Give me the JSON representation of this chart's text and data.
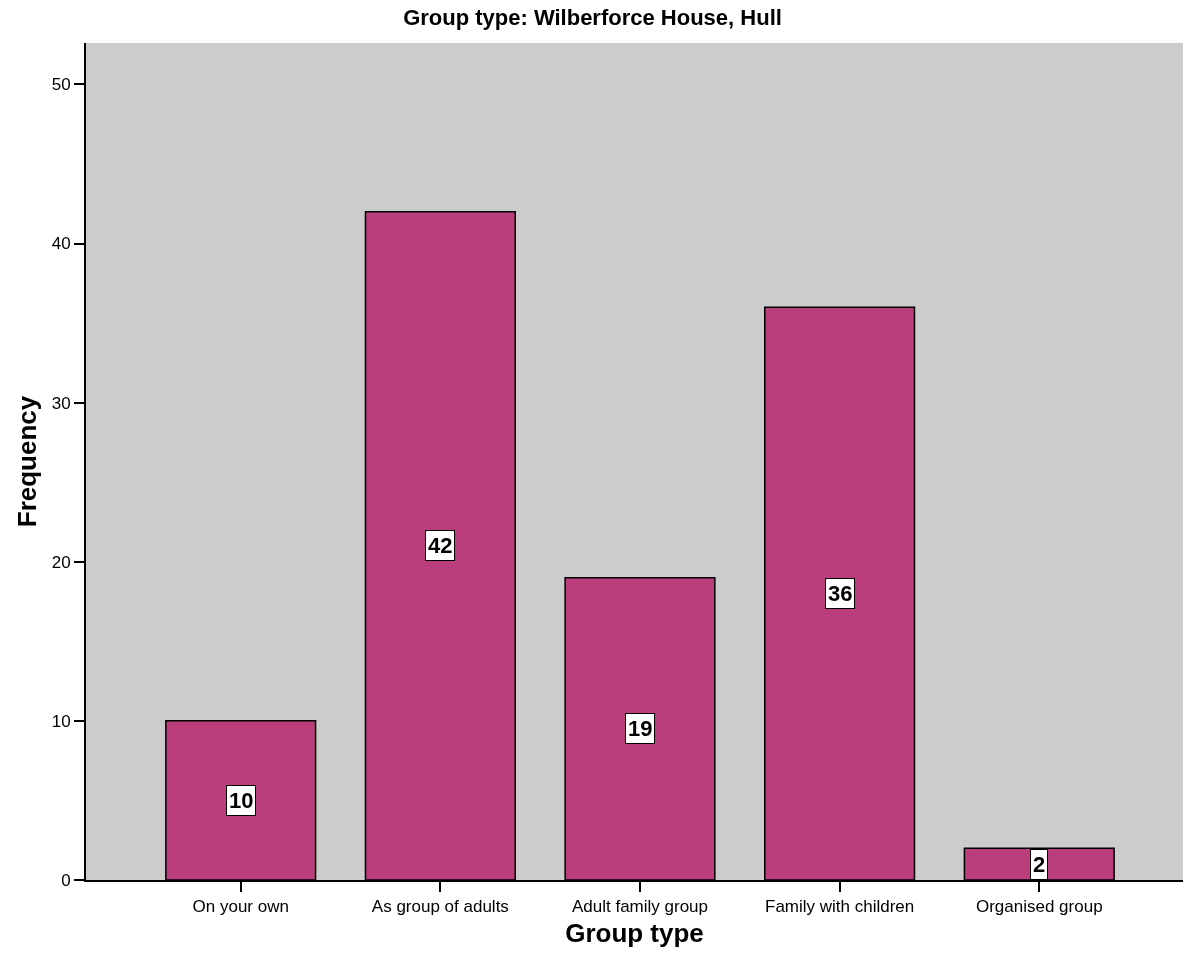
{
  "chart_data": {
    "type": "bar",
    "title": "Group type: Wilberforce House, Hull",
    "xlabel": "Group type",
    "ylabel": "Frequency",
    "categories": [
      "On your own",
      "As group of adults",
      "Adult family group",
      "Family with children",
      "Organised group"
    ],
    "values": [
      10,
      42,
      19,
      36,
      2
    ],
    "color": "#bb3e7c",
    "ylim": [
      0,
      52.6
    ],
    "yticks": [
      0,
      10,
      20,
      30,
      40,
      50
    ],
    "grid": false,
    "data_labels": true
  }
}
